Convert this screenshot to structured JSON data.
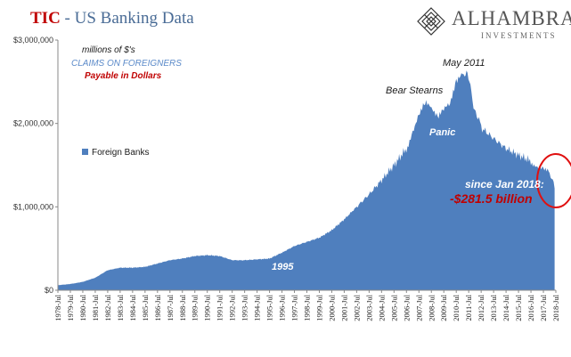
{
  "header": {
    "title_tic": "TIC",
    "title_rest": " - US Banking Data",
    "logo_name": "ALHAMBRA",
    "logo_sub": "INVESTMENTS",
    "logo_icon": "alhambra-diamond-logo"
  },
  "colors": {
    "area": "#4f7fbe",
    "title_red": "#c00000",
    "label_blue": "#5b8ac9",
    "annotation_red": "#c00000",
    "circle": "#e01010"
  },
  "chart_data": {
    "type": "area",
    "title": "TIC - US Banking Data",
    "xlabel": "",
    "ylabel": "",
    "ylim": [
      0,
      3000000
    ],
    "yticks": [
      "$0",
      "$1,000,000",
      "$2,000,000",
      "$3,000,000"
    ],
    "ytick_values": [
      0,
      1000000,
      2000000,
      3000000
    ],
    "xticks": [
      "1978-Jul",
      "1979-Jul",
      "1980-Jul",
      "1981-Jul",
      "1982-Jul",
      "1983-Jul",
      "1984-Jul",
      "1985-Jul",
      "1986-Jul",
      "1987-Jul",
      "1988-Jul",
      "1989-Jul",
      "1990-Jul",
      "1991-Jul",
      "1992-Jul",
      "1993-Jul",
      "1994-Jul",
      "1995-Jul",
      "1996-Jul",
      "1997-Jul",
      "1998-Jul",
      "1999-Jul",
      "2000-Jul",
      "2001-Jul",
      "2002-Jul",
      "2003-Jul",
      "2004-Jul",
      "2005-Jul",
      "2006-Jul",
      "2007-Jul",
      "2008-Jul",
      "2009-Jul",
      "2010-Jul",
      "2011-Jul",
      "2012-Jul",
      "2013-Jul",
      "2014-Jul",
      "2015-Jul",
      "2016-Jul",
      "2017-Jul",
      "2018-Jul"
    ],
    "grid": false,
    "legend": {
      "position": "left-middle",
      "entries": [
        "Foreign Banks"
      ]
    },
    "series": [
      {
        "name": "Foreign Banks",
        "x": [
          1978.5,
          1979.5,
          1980.5,
          1981.5,
          1982.5,
          1983.5,
          1984.5,
          1985.5,
          1986.5,
          1987.5,
          1988.5,
          1989.5,
          1990.5,
          1991.5,
          1992.5,
          1993.5,
          1994.5,
          1995.5,
          1996.5,
          1997.5,
          1998.5,
          1999.5,
          2000.5,
          2001.5,
          2002.5,
          2003.5,
          2004.5,
          2005.5,
          2006.5,
          2007.0,
          2007.5,
          2008.0,
          2008.5,
          2009.0,
          2009.5,
          2010.0,
          2010.5,
          2011.0,
          2011.4,
          2011.8,
          2012.5,
          2013.5,
          2014.5,
          2015.5,
          2016.5,
          2017.0,
          2017.5,
          2018.0,
          2018.4
        ],
        "values": [
          60000,
          75000,
          100000,
          150000,
          240000,
          270000,
          270000,
          280000,
          320000,
          360000,
          380000,
          410000,
          420000,
          410000,
          360000,
          360000,
          370000,
          380000,
          450000,
          530000,
          580000,
          630000,
          720000,
          850000,
          1000000,
          1150000,
          1320000,
          1500000,
          1700000,
          1920000,
          2120000,
          2270000,
          2180000,
          2050000,
          2150000,
          2200000,
          2450000,
          2550000,
          2620000,
          2250000,
          1950000,
          1820000,
          1700000,
          1620000,
          1550000,
          1500000,
          1480000,
          1440000,
          1220000
        ]
      }
    ],
    "annotations": [
      {
        "text": "millions of $'s",
        "color": "#1a1a1a"
      },
      {
        "text": "CLAIMS  ON FOREIGNERS",
        "color": "#5b8ac9"
      },
      {
        "text": "Payable  in Dollars",
        "color": "#c00000"
      },
      {
        "text": "May 2011",
        "color": "#1a1a1a"
      },
      {
        "text": "Bear Stearns",
        "color": "#1a1a1a"
      },
      {
        "text": "Panic",
        "color": "#ffffff"
      },
      {
        "text": "1995",
        "color": "#ffffff"
      },
      {
        "text": "since Jan 2018:",
        "color": "#ffffff"
      },
      {
        "text": "-$281.5 billion",
        "color": "#c00000"
      }
    ]
  }
}
